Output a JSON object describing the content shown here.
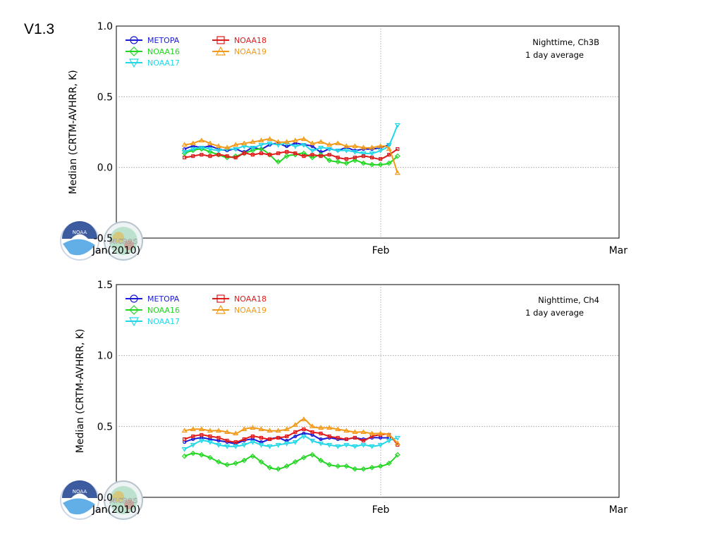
{
  "version_label": "V1.3",
  "colors": {
    "METOPA": "#1a1ad6",
    "NOAA16": "#22d622",
    "NOAA17": "#22d8e8",
    "NOAA18": "#e01a1a",
    "NOAA19": "#f29a18",
    "grid": "#9a9a9a"
  },
  "logos": [
    "noaa-logo",
    "micros-logo"
  ],
  "logo_text": {
    "noaa": "NOAA",
    "micros": "MICROS"
  },
  "chart_data": [
    {
      "type": "line",
      "ylabel": "Median (CRTM-AVHRR, K)",
      "ylim": [
        -0.5,
        1.0
      ],
      "yticks": [
        "-0.5",
        "0.0",
        "0.5",
        "1.0"
      ],
      "xlim": [
        "2010-01-01",
        "2010-03-01"
      ],
      "xticks": [
        "Jan(2010)",
        "Feb",
        "Mar"
      ],
      "grid": true,
      "annotation": [
        "Nighttime, Ch3B",
        "1 day average"
      ],
      "legend_position": "top-left",
      "x": [
        "2010-01-09",
        "2010-01-10",
        "2010-01-11",
        "2010-01-12",
        "2010-01-13",
        "2010-01-14",
        "2010-01-15",
        "2010-01-16",
        "2010-01-17",
        "2010-01-18",
        "2010-01-19",
        "2010-01-20",
        "2010-01-21",
        "2010-01-22",
        "2010-01-23",
        "2010-01-24",
        "2010-01-25",
        "2010-01-26",
        "2010-01-27",
        "2010-01-28",
        "2010-01-29",
        "2010-01-30",
        "2010-01-31",
        "2010-02-01",
        "2010-02-02",
        "2010-02-03"
      ],
      "series": [
        {
          "name": "METOPA",
          "marker": "circle",
          "values": [
            0.13,
            0.15,
            0.14,
            0.15,
            0.13,
            0.12,
            0.13,
            0.11,
            0.14,
            0.13,
            0.16,
            0.17,
            0.15,
            0.17,
            0.16,
            0.15,
            0.11,
            0.13,
            0.12,
            0.14,
            0.12,
            0.13,
            0.13,
            0.14,
            0.16,
            null
          ]
        },
        {
          "name": "NOAA16",
          "marker": "diamond",
          "values": [
            0.1,
            0.12,
            0.13,
            0.11,
            0.09,
            0.07,
            0.08,
            0.1,
            0.12,
            0.13,
            0.09,
            0.04,
            0.08,
            0.09,
            0.1,
            0.07,
            0.09,
            0.05,
            0.04,
            0.03,
            0.05,
            0.03,
            0.02,
            0.02,
            0.03,
            0.08
          ]
        },
        {
          "name": "NOAA17",
          "marker": "triangle-down",
          "values": [
            0.11,
            0.13,
            0.14,
            0.13,
            0.12,
            0.13,
            0.13,
            0.15,
            0.14,
            0.16,
            0.17,
            0.16,
            0.17,
            0.15,
            0.16,
            0.12,
            0.14,
            0.13,
            0.12,
            0.12,
            0.11,
            0.1,
            0.1,
            0.12,
            0.16,
            0.3
          ]
        },
        {
          "name": "NOAA18",
          "marker": "square",
          "values": [
            0.07,
            0.08,
            0.09,
            0.08,
            0.09,
            0.08,
            0.07,
            0.1,
            0.09,
            0.1,
            0.09,
            0.1,
            0.11,
            0.1,
            0.08,
            0.09,
            0.08,
            0.09,
            0.07,
            0.06,
            0.07,
            0.08,
            0.07,
            0.06,
            0.09,
            0.13
          ]
        },
        {
          "name": "NOAA19",
          "marker": "triangle-up",
          "values": [
            0.16,
            0.17,
            0.19,
            0.17,
            0.15,
            0.14,
            0.16,
            0.17,
            0.18,
            0.19,
            0.2,
            0.18,
            0.18,
            0.19,
            0.2,
            0.17,
            0.18,
            0.16,
            0.17,
            0.15,
            0.15,
            0.14,
            0.14,
            0.15,
            0.13,
            -0.04
          ]
        }
      ]
    },
    {
      "type": "line",
      "ylabel": "Median (CRTM-AVHRR, K)",
      "ylim": [
        0.0,
        1.5
      ],
      "yticks": [
        "0.0",
        "0.5",
        "1.0",
        "1.5"
      ],
      "xlim": [
        "2010-01-01",
        "2010-03-01"
      ],
      "xticks": [
        "Jan(2010)",
        "Feb",
        "Mar"
      ],
      "grid": true,
      "annotation": [
        "Nighttime, Ch4",
        "1 day average"
      ],
      "legend_position": "top-left",
      "x": [
        "2010-01-09",
        "2010-01-10",
        "2010-01-11",
        "2010-01-12",
        "2010-01-13",
        "2010-01-14",
        "2010-01-15",
        "2010-01-16",
        "2010-01-17",
        "2010-01-18",
        "2010-01-19",
        "2010-01-20",
        "2010-01-21",
        "2010-01-22",
        "2010-01-23",
        "2010-01-24",
        "2010-01-25",
        "2010-01-26",
        "2010-01-27",
        "2010-01-28",
        "2010-01-29",
        "2010-01-30",
        "2010-01-31",
        "2010-02-01",
        "2010-02-02",
        "2010-02-03"
      ],
      "series": [
        {
          "name": "METOPA",
          "marker": "circle",
          "values": [
            0.39,
            0.41,
            0.42,
            0.41,
            0.4,
            0.39,
            0.38,
            0.4,
            0.41,
            0.39,
            0.41,
            0.42,
            0.4,
            0.43,
            0.45,
            0.44,
            0.41,
            0.42,
            0.41,
            0.41,
            0.42,
            0.41,
            0.42,
            0.42,
            0.42,
            null
          ]
        },
        {
          "name": "NOAA16",
          "marker": "diamond",
          "values": [
            0.29,
            0.31,
            0.3,
            0.28,
            0.25,
            0.23,
            0.24,
            0.26,
            0.29,
            0.25,
            0.21,
            0.2,
            0.22,
            0.25,
            0.28,
            0.3,
            0.26,
            0.23,
            0.22,
            0.22,
            0.2,
            0.2,
            0.21,
            0.22,
            0.24,
            0.3
          ]
        },
        {
          "name": "NOAA17",
          "marker": "triangle-down",
          "values": [
            0.34,
            0.37,
            0.4,
            0.39,
            0.37,
            0.36,
            0.36,
            0.37,
            0.39,
            0.37,
            0.36,
            0.37,
            0.38,
            0.39,
            0.43,
            0.4,
            0.38,
            0.37,
            0.36,
            0.37,
            0.36,
            0.37,
            0.36,
            0.37,
            0.4,
            0.42
          ]
        },
        {
          "name": "NOAA18",
          "marker": "square",
          "values": [
            0.41,
            0.43,
            0.44,
            0.43,
            0.42,
            0.4,
            0.39,
            0.41,
            0.43,
            0.42,
            0.41,
            0.42,
            0.43,
            0.46,
            0.48,
            0.46,
            0.45,
            0.43,
            0.42,
            0.41,
            0.42,
            0.4,
            0.43,
            0.44,
            0.44,
            0.37
          ]
        },
        {
          "name": "NOAA19",
          "marker": "triangle-up",
          "values": [
            0.47,
            0.48,
            0.48,
            0.47,
            0.47,
            0.46,
            0.45,
            0.48,
            0.49,
            0.48,
            0.47,
            0.47,
            0.48,
            0.51,
            0.55,
            0.5,
            0.49,
            0.49,
            0.48,
            0.47,
            0.46,
            0.46,
            0.45,
            0.45,
            0.44,
            0.38
          ]
        }
      ]
    }
  ]
}
